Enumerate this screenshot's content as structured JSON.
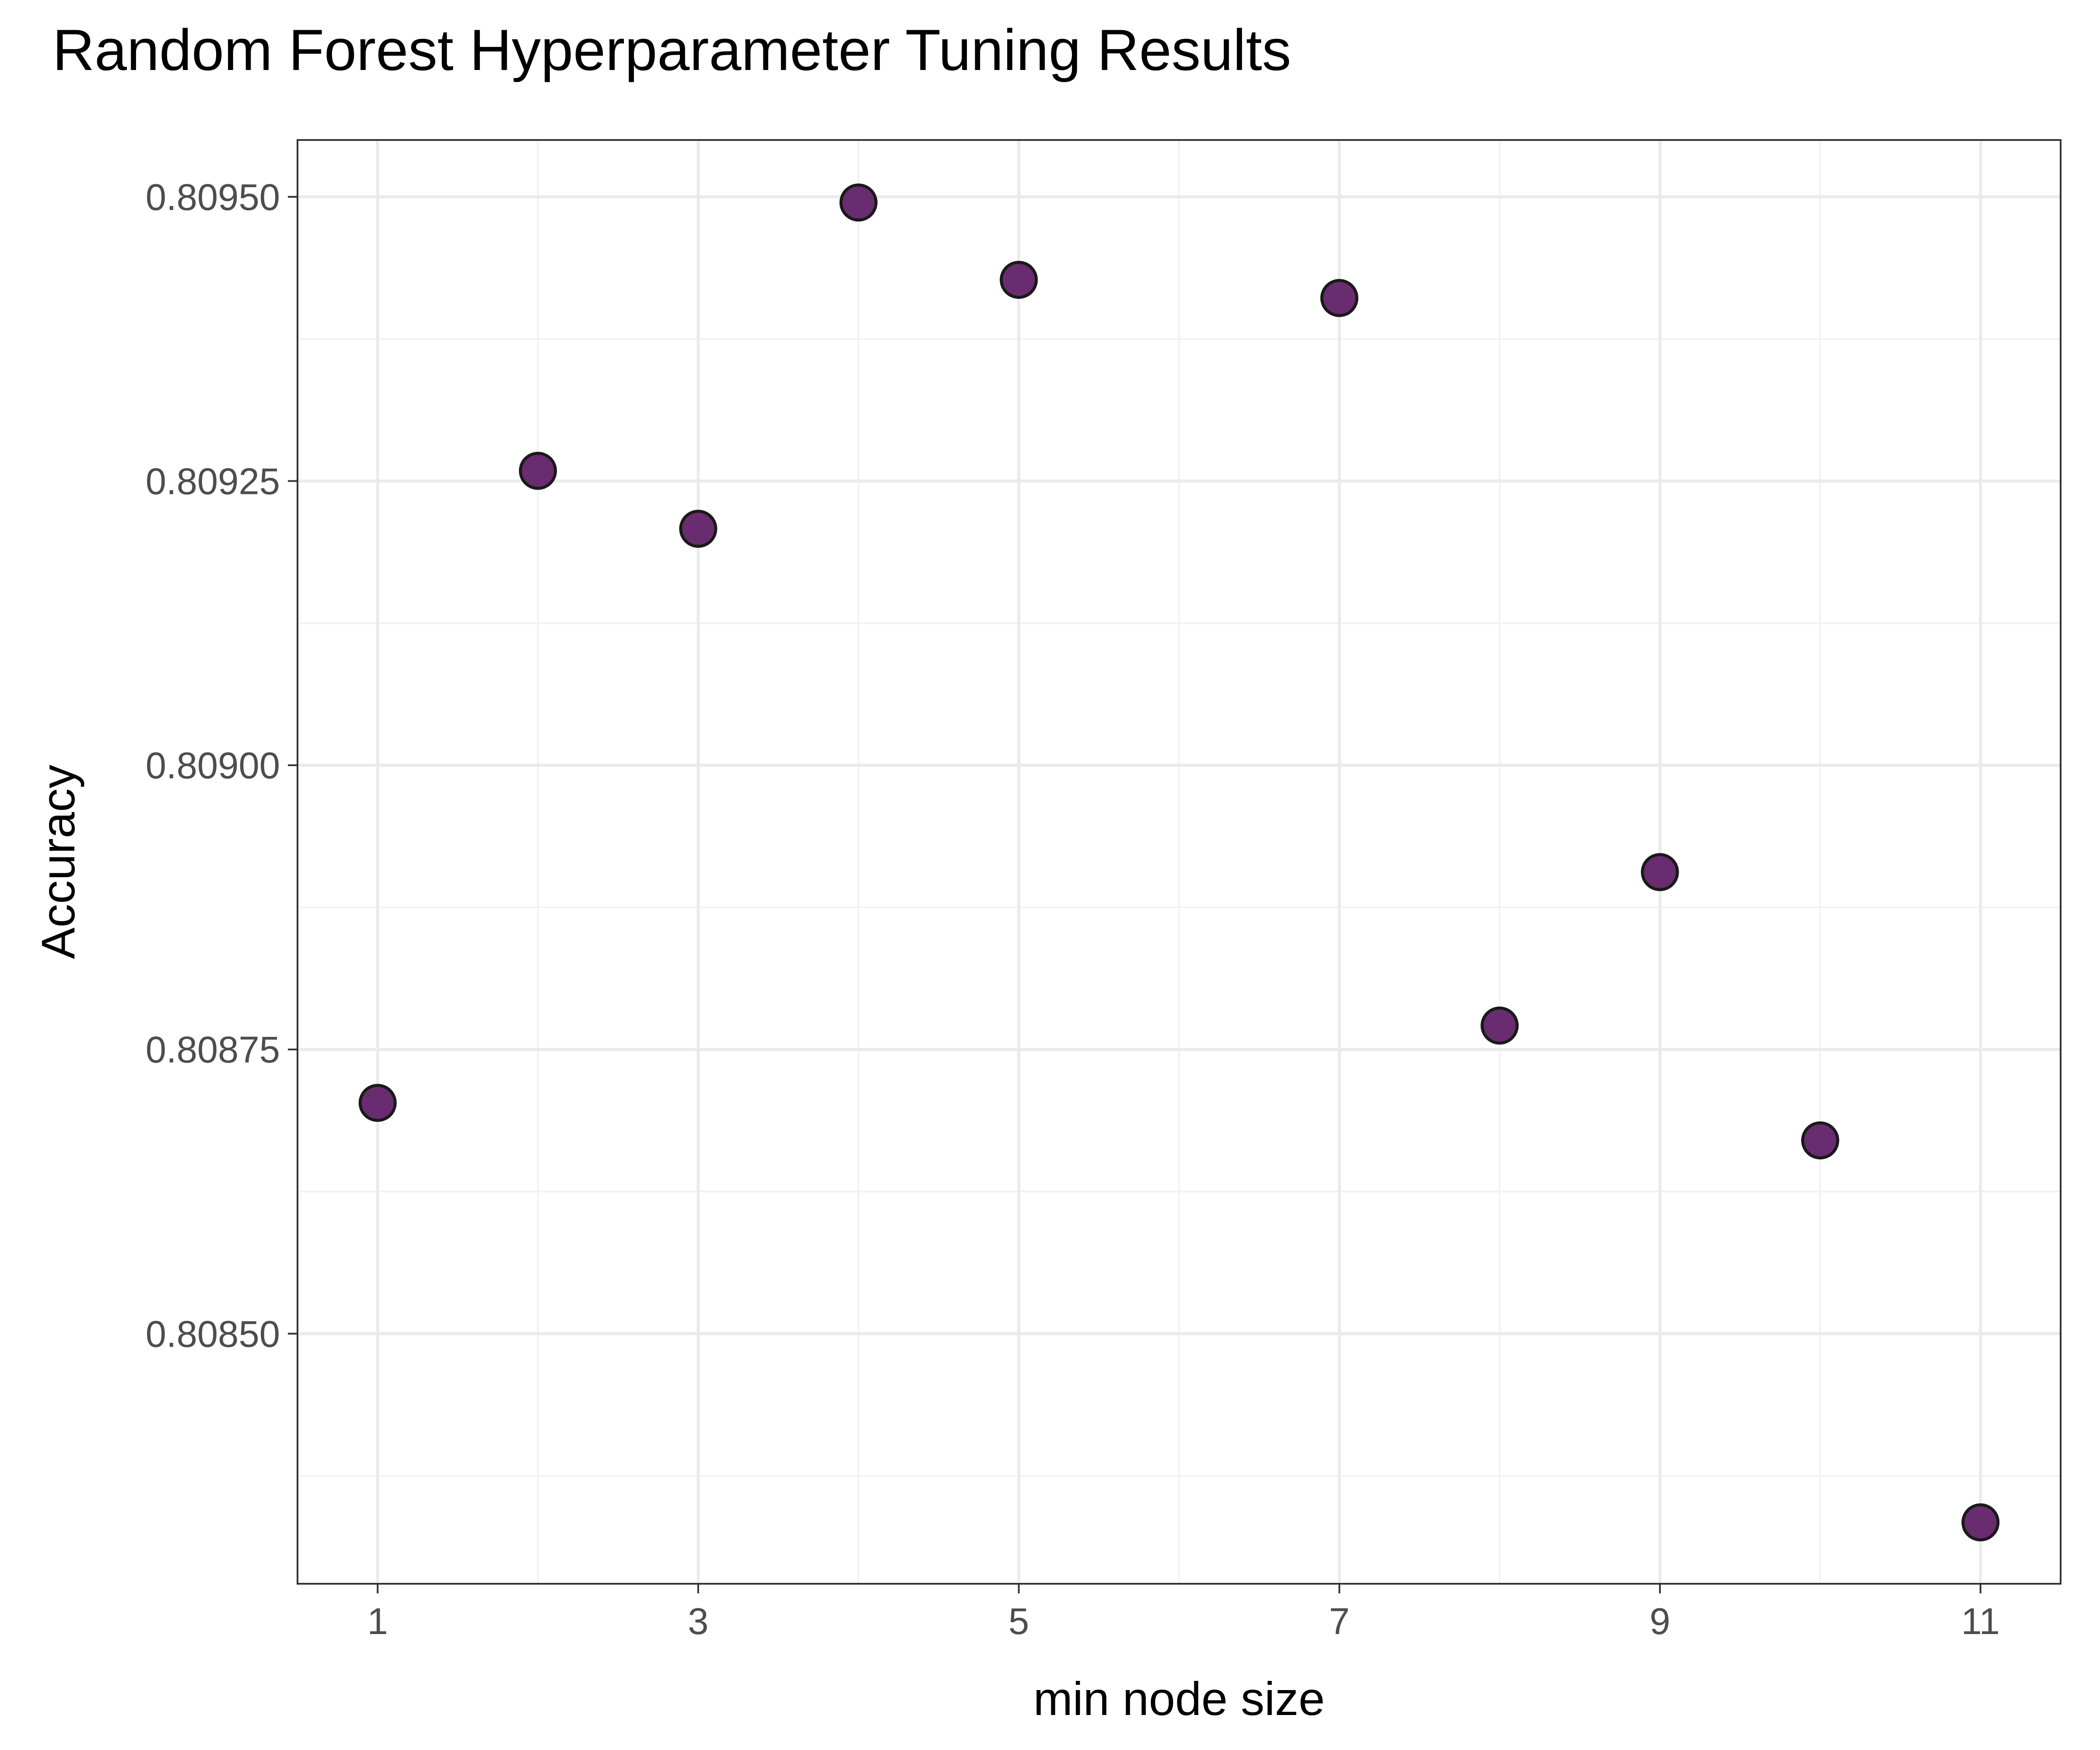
{
  "chart_data": {
    "type": "scatter",
    "title": "Random Forest Hyperparameter Tuning Results",
    "xlabel": "min node size",
    "ylabel": "Accuracy",
    "x": [
      1,
      2,
      3,
      4,
      5,
      7,
      8,
      9,
      10,
      11
    ],
    "y": [
      0.808703,
      0.809259,
      0.809208,
      0.809495,
      0.809427,
      0.809411,
      0.808771,
      0.808906,
      0.80867,
      0.808334
    ],
    "xlim": [
      0.5,
      11.5
    ],
    "ylim": [
      0.80828,
      0.80955
    ],
    "x_ticks": [
      1,
      3,
      5,
      7,
      9,
      11
    ],
    "x_tick_labels": [
      "1",
      "3",
      "5",
      "7",
      "9",
      "11"
    ],
    "y_ticks": [
      0.8085,
      0.80875,
      0.809,
      0.80925,
      0.8095
    ],
    "y_tick_labels": [
      "0.80850",
      "0.80875",
      "0.80900",
      "0.80925",
      "0.80950"
    ],
    "grid": true,
    "legend": "none",
    "colors": {
      "point_fill": "#6A2C70",
      "point_stroke": "#1a1a1a",
      "grid_major": "#ebebeb",
      "grid_minor": "#f2f2f2",
      "panel_border": "#333333",
      "tick_label": "#4d4d4d"
    }
  }
}
